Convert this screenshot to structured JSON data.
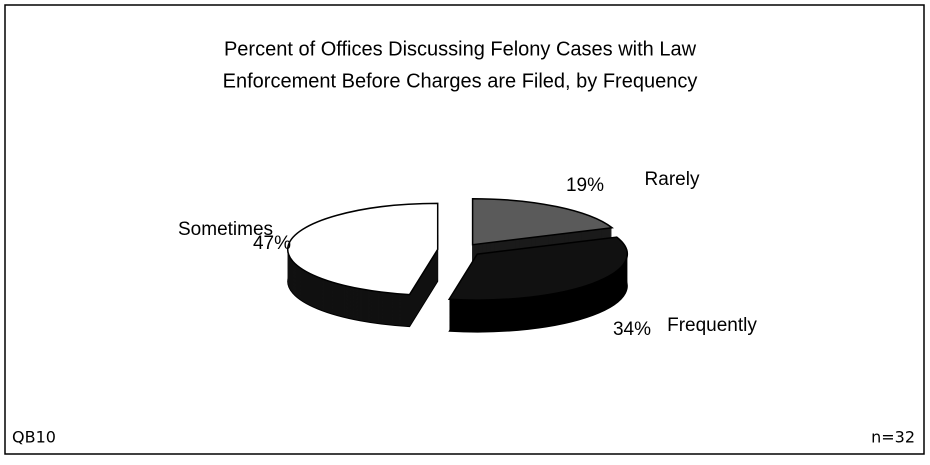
{
  "chart_data": {
    "type": "pie",
    "title": [
      "Percent of Offices Discussing Felony Cases with Law",
      "Enforcement Before Charges are Filed, by Frequency"
    ],
    "categories": [
      "Rarely",
      "Frequently",
      "Sometimes"
    ],
    "values": [
      19,
      34,
      47
    ],
    "value_labels": [
      "19%",
      "34%",
      "47%"
    ],
    "colors": [
      "#5a5a5a",
      "#111111",
      "#ffffff"
    ],
    "side_colors": [
      "#1a1a1a",
      "#000000",
      "#111111"
    ],
    "footnote_left": "QB10",
    "footnote_right": "n=32"
  }
}
